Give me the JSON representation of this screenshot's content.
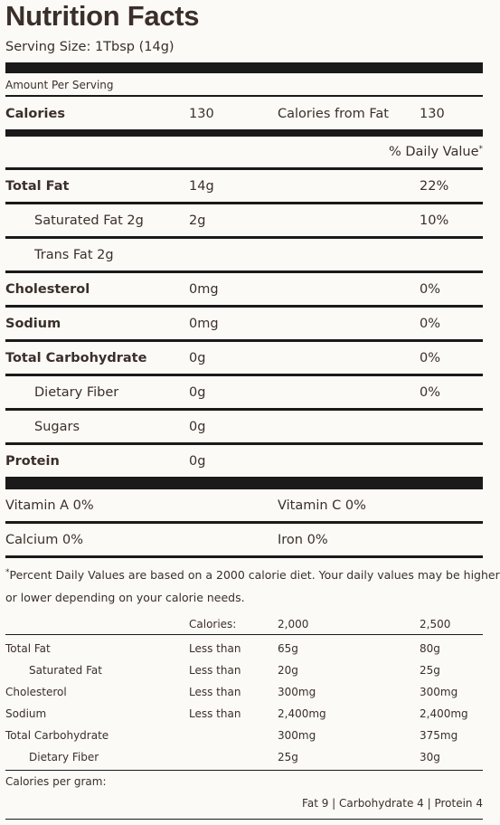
{
  "label": {
    "title": "Nutrition Facts",
    "serving_size": "Serving Size: 1Tbsp (14g)",
    "amount_per_serving": "Amount Per Serving",
    "calories_label": "Calories",
    "calories_value": "130",
    "calories_from_fat_label": "Calories from Fat",
    "calories_from_fat_value": "130",
    "daily_value_header": "% Daily Value",
    "asterisk": "*"
  },
  "nutrients": [
    {
      "name": "Total Fat",
      "amount": "14g",
      "dv": "22%"
    },
    {
      "name": "Saturated Fat 2g",
      "amount": "2g",
      "dv": "10%"
    },
    {
      "name": "Trans Fat 2g",
      "amount": "",
      "dv": ""
    },
    {
      "name": "Cholesterol",
      "amount": "0mg",
      "dv": "0%"
    },
    {
      "name": "Sodium",
      "amount": "0mg",
      "dv": "0%"
    },
    {
      "name": "Total Carbohydrate",
      "amount": "0g",
      "dv": "0%"
    },
    {
      "name": "Dietary Fiber",
      "amount": "0g",
      "dv": "0%"
    },
    {
      "name": "Sugars",
      "amount": "0g",
      "dv": ""
    },
    {
      "name": "Protein",
      "amount": "0g",
      "dv": ""
    }
  ],
  "vitamins": [
    {
      "left": "Vitamin A 0%",
      "right": "Vitamin C 0%"
    },
    {
      "left": "Calcium 0%",
      "right": "Iron 0%"
    }
  ],
  "footnote": {
    "asterisk": "*",
    "line1": "Percent Daily Values are based on a 2000 calorie diet. Your daily values may be higher",
    "line2": "or lower depending on your calorie needs."
  },
  "reference": {
    "header": {
      "label": "Calories:",
      "col1": "2,000",
      "col2": "2,500"
    },
    "rows": [
      {
        "name": "Total Fat",
        "qual": "Less than",
        "v1": "65g",
        "v2": "80g"
      },
      {
        "name": "Saturated Fat",
        "qual": "Less than",
        "v1": "20g",
        "v2": "25g"
      },
      {
        "name": "Cholesterol",
        "qual": "Less than",
        "v1": "300mg",
        "v2": "300mg"
      },
      {
        "name": "Sodium",
        "qual": "Less than",
        "v1": "2,400mg",
        "v2": "2,400mg"
      },
      {
        "name": "Total Carbohydrate",
        "qual": "",
        "v1": "300mg",
        "v2": "375mg"
      },
      {
        "name": "Dietary Fiber",
        "qual": "",
        "v1": "25g",
        "v2": "30g"
      }
    ],
    "calories_per_gram_label": "Calories per gram:",
    "calories_per_gram_values": "Fat 9 | Carbohydrate 4 | Protein 4"
  }
}
